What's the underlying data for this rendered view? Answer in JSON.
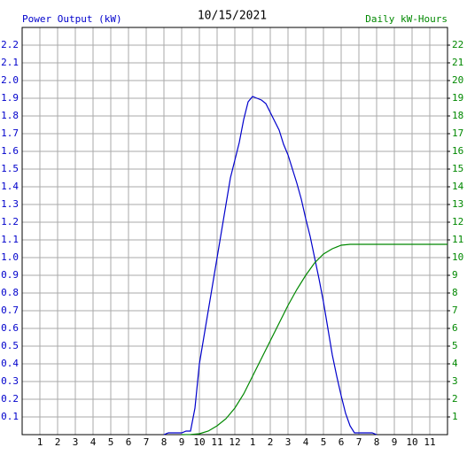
{
  "chart_data": {
    "type": "line",
    "title": "10/15/2021",
    "ylabel": "Power Output (kW)",
    "y2label": "Daily kW-Hours",
    "xlim": [
      0,
      24
    ],
    "xticks": [
      1,
      2,
      3,
      4,
      5,
      6,
      7,
      8,
      9,
      10,
      11,
      12,
      {
        "value": 13,
        "label": "1"
      },
      {
        "value": 14,
        "label": "2"
      },
      {
        "value": 15,
        "label": "3"
      },
      {
        "value": 16,
        "label": "4"
      },
      {
        "value": 17,
        "label": "5"
      },
      {
        "value": 18,
        "label": "6"
      },
      {
        "value": 19,
        "label": "7"
      },
      {
        "value": 20,
        "label": "8"
      },
      {
        "value": 21,
        "label": "9"
      },
      {
        "value": 22,
        "label": "10"
      },
      {
        "value": 23,
        "label": "11"
      }
    ],
    "ylim": [
      0,
      2.3
    ],
    "yticks": [
      0.1,
      0.2,
      0.3,
      0.4,
      0.5,
      0.6,
      0.7,
      0.8,
      0.9,
      {
        "value": 1,
        "label": "1.0"
      },
      1.1,
      1.2,
      1.3,
      1.4,
      1.5,
      1.6,
      1.7,
      1.8,
      1.9,
      {
        "value": 2,
        "label": "2.0"
      },
      2.1,
      2.2
    ],
    "y2lim": [
      0,
      23
    ],
    "y2ticks": [
      1,
      2,
      3,
      4,
      5,
      6,
      7,
      8,
      9,
      10,
      11,
      12,
      13,
      14,
      15,
      16,
      17,
      18,
      19,
      20,
      21,
      22
    ],
    "grid": true,
    "series": [
      {
        "name": "Power Output (kW)",
        "color": "#0000cc",
        "x": [
          8,
          8.25,
          8.5,
          8.75,
          9,
          9.25,
          9.5,
          9.75,
          10,
          10.25,
          10.5,
          10.75,
          11,
          11.25,
          11.5,
          11.75,
          12,
          12.25,
          12.5,
          12.75,
          13,
          13.25,
          13.5,
          13.75,
          14,
          14.25,
          14.5,
          14.75,
          15,
          15.25,
          15.5,
          15.75,
          16,
          16.25,
          16.5,
          16.75,
          17,
          17.25,
          17.5,
          17.75,
          18,
          18.25,
          18.5,
          18.75,
          19,
          19.25,
          19.5,
          19.75,
          20
        ],
        "values": [
          0,
          0.01,
          0.01,
          0.01,
          0.01,
          0.02,
          0.02,
          0.15,
          0.4,
          0.55,
          0.7,
          0.85,
          1.0,
          1.15,
          1.3,
          1.45,
          1.55,
          1.65,
          1.78,
          1.88,
          1.91,
          1.9,
          1.89,
          1.87,
          1.82,
          1.77,
          1.72,
          1.64,
          1.58,
          1.5,
          1.42,
          1.33,
          1.22,
          1.12,
          1.0,
          0.88,
          0.75,
          0.6,
          0.45,
          0.33,
          0.22,
          0.12,
          0.05,
          0.01,
          0.01,
          0.01,
          0.01,
          0.01,
          0
        ]
      },
      {
        "name": "Daily kW-Hours",
        "color": "#008800",
        "axis": "y2",
        "x": [
          9,
          9.5,
          10,
          10.5,
          11,
          11.5,
          12,
          12.5,
          13,
          13.5,
          14,
          14.5,
          15,
          15.5,
          16,
          16.5,
          17,
          17.5,
          18,
          18.5,
          24
        ],
        "values": [
          0,
          0.01,
          0.05,
          0.2,
          0.5,
          0.9,
          1.5,
          2.3,
          3.3,
          4.3,
          5.3,
          6.3,
          7.3,
          8.2,
          9.0,
          9.7,
          10.2,
          10.5,
          10.7,
          10.75,
          10.75
        ]
      }
    ]
  }
}
